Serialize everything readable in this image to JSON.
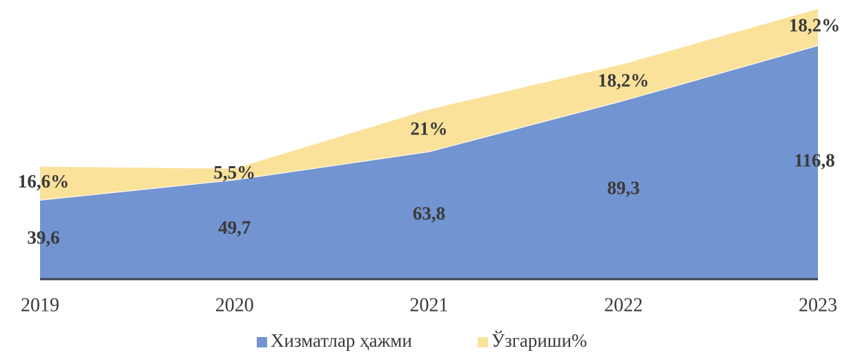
{
  "chart_data": {
    "type": "stacked_area",
    "categories": [
      "2019",
      "2020",
      "2021",
      "2022",
      "2023"
    ],
    "series": [
      {
        "name": "Хизматлар ҳажми",
        "color": "#7294d0",
        "values": [
          39.6,
          49.7,
          63.8,
          89.3,
          116.8
        ],
        "value_labels": [
          "39,6",
          "49,7",
          "63,8",
          "89,3",
          "116,8"
        ]
      },
      {
        "name": "Ўзгариши%",
        "color": "#fbe29b",
        "values": [
          16.6,
          5.5,
          21,
          18.2,
          18.2
        ],
        "value_labels": [
          "16,6%",
          "5,5%",
          "21%",
          "18,2%",
          "18,2%"
        ]
      }
    ]
  }
}
